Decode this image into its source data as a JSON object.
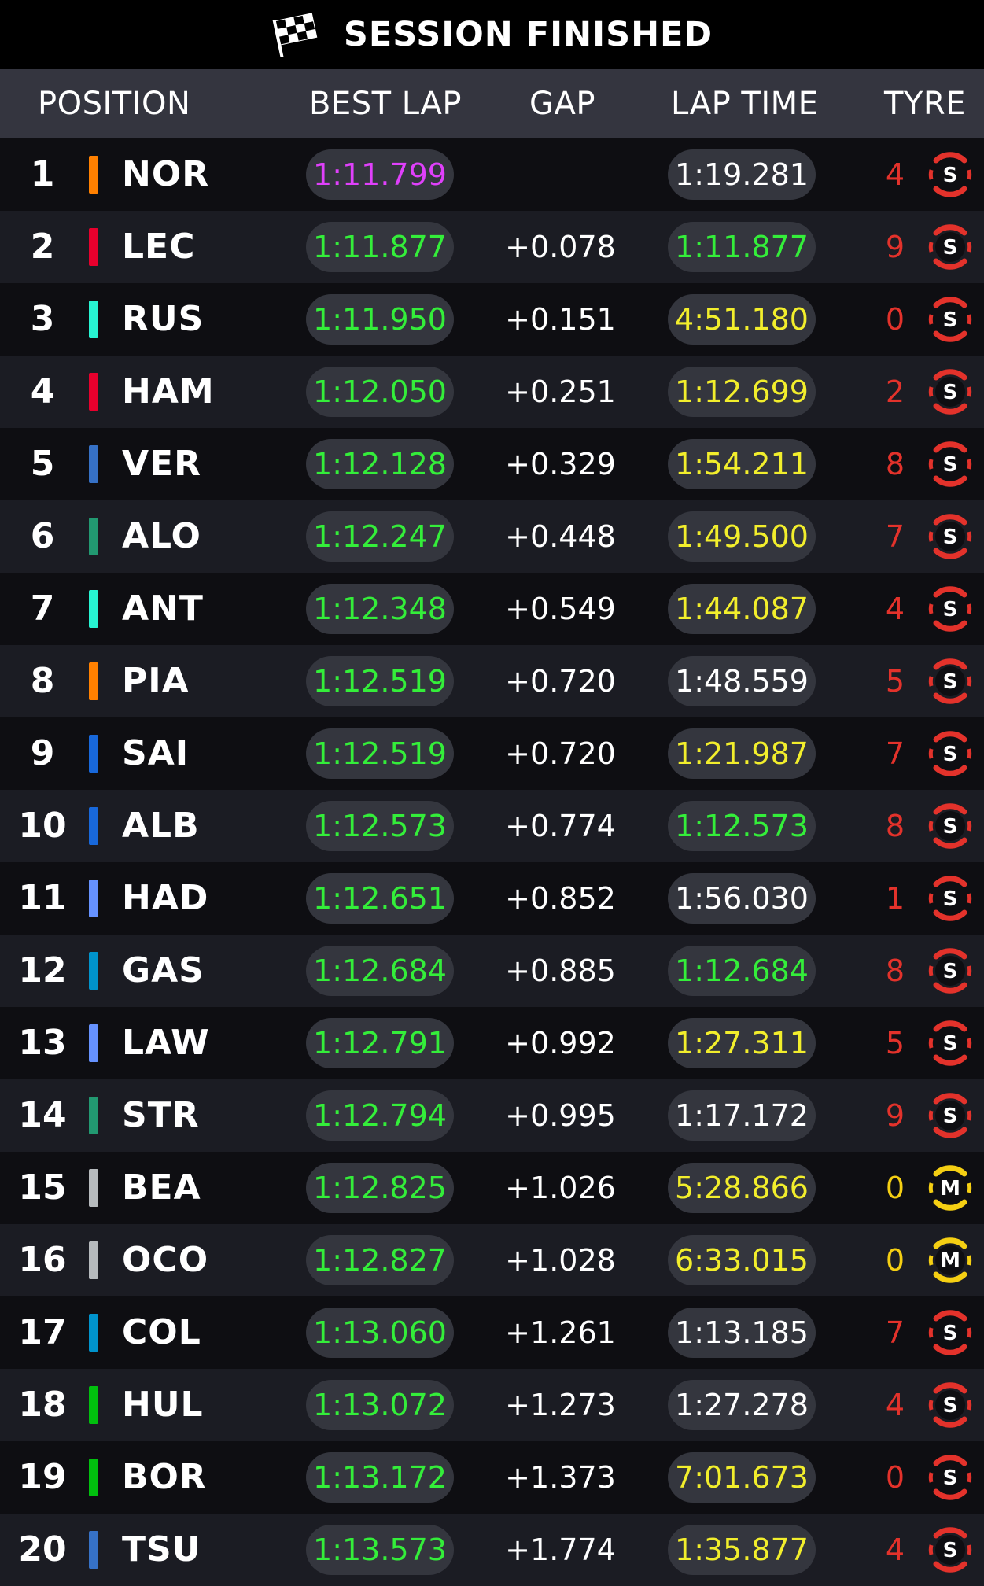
{
  "header": {
    "title": "SESSION FINISHED"
  },
  "columns": {
    "position": "POSITION",
    "best_lap": "BEST LAP",
    "gap": "GAP",
    "lap_time": "LAP TIME",
    "tyre": "TYRE"
  },
  "colors": {
    "purple": "#e040fb",
    "green": "#34ee3a",
    "yellow": "#f2ee2c",
    "white": "#ffffff",
    "soft": "#e3322b",
    "medium": "#f5cf13"
  },
  "rows": [
    {
      "pos": "1",
      "driver": "NOR",
      "team_color": "#ff8000",
      "best": "1:11.799",
      "best_color": "purple",
      "gap": "",
      "lap": "1:19.281",
      "lap_color": "white",
      "laps": "4",
      "tyre": "S"
    },
    {
      "pos": "2",
      "driver": "LEC",
      "team_color": "#e8002d",
      "best": "1:11.877",
      "best_color": "green",
      "gap": "+0.078",
      "lap": "1:11.877",
      "lap_color": "green",
      "laps": "9",
      "tyre": "S"
    },
    {
      "pos": "3",
      "driver": "RUS",
      "team_color": "#27f4d2",
      "best": "1:11.950",
      "best_color": "green",
      "gap": "+0.151",
      "lap": "4:51.180",
      "lap_color": "yellow",
      "laps": "0",
      "tyre": "S"
    },
    {
      "pos": "4",
      "driver": "HAM",
      "team_color": "#e8002d",
      "best": "1:12.050",
      "best_color": "green",
      "gap": "+0.251",
      "lap": "1:12.699",
      "lap_color": "yellow",
      "laps": "2",
      "tyre": "S"
    },
    {
      "pos": "5",
      "driver": "VER",
      "team_color": "#3671c6",
      "best": "1:12.128",
      "best_color": "green",
      "gap": "+0.329",
      "lap": "1:54.211",
      "lap_color": "yellow",
      "laps": "8",
      "tyre": "S"
    },
    {
      "pos": "6",
      "driver": "ALO",
      "team_color": "#229971",
      "best": "1:12.247",
      "best_color": "green",
      "gap": "+0.448",
      "lap": "1:49.500",
      "lap_color": "yellow",
      "laps": "7",
      "tyre": "S"
    },
    {
      "pos": "7",
      "driver": "ANT",
      "team_color": "#27f4d2",
      "best": "1:12.348",
      "best_color": "green",
      "gap": "+0.549",
      "lap": "1:44.087",
      "lap_color": "yellow",
      "laps": "4",
      "tyre": "S"
    },
    {
      "pos": "8",
      "driver": "PIA",
      "team_color": "#ff8000",
      "best": "1:12.519",
      "best_color": "green",
      "gap": "+0.720",
      "lap": "1:48.559",
      "lap_color": "white",
      "laps": "5",
      "tyre": "S"
    },
    {
      "pos": "9",
      "driver": "SAI",
      "team_color": "#1868db",
      "best": "1:12.519",
      "best_color": "green",
      "gap": "+0.720",
      "lap": "1:21.987",
      "lap_color": "yellow",
      "laps": "7",
      "tyre": "S"
    },
    {
      "pos": "10",
      "driver": "ALB",
      "team_color": "#1868db",
      "best": "1:12.573",
      "best_color": "green",
      "gap": "+0.774",
      "lap": "1:12.573",
      "lap_color": "green",
      "laps": "8",
      "tyre": "S"
    },
    {
      "pos": "11",
      "driver": "HAD",
      "team_color": "#6692ff",
      "best": "1:12.651",
      "best_color": "green",
      "gap": "+0.852",
      "lap": "1:56.030",
      "lap_color": "white",
      "laps": "1",
      "tyre": "S"
    },
    {
      "pos": "12",
      "driver": "GAS",
      "team_color": "#0093cc",
      "best": "1:12.684",
      "best_color": "green",
      "gap": "+0.885",
      "lap": "1:12.684",
      "lap_color": "green",
      "laps": "8",
      "tyre": "S"
    },
    {
      "pos": "13",
      "driver": "LAW",
      "team_color": "#6692ff",
      "best": "1:12.791",
      "best_color": "green",
      "gap": "+0.992",
      "lap": "1:27.311",
      "lap_color": "yellow",
      "laps": "5",
      "tyre": "S"
    },
    {
      "pos": "14",
      "driver": "STR",
      "team_color": "#229971",
      "best": "1:12.794",
      "best_color": "green",
      "gap": "+0.995",
      "lap": "1:17.172",
      "lap_color": "white",
      "laps": "9",
      "tyre": "S"
    },
    {
      "pos": "15",
      "driver": "BEA",
      "team_color": "#b6babd",
      "best": "1:12.825",
      "best_color": "green",
      "gap": "+1.026",
      "lap": "5:28.866",
      "lap_color": "yellow",
      "laps": "0",
      "tyre": "M"
    },
    {
      "pos": "16",
      "driver": "OCO",
      "team_color": "#b6babd",
      "best": "1:12.827",
      "best_color": "green",
      "gap": "+1.028",
      "lap": "6:33.015",
      "lap_color": "yellow",
      "laps": "0",
      "tyre": "M"
    },
    {
      "pos": "17",
      "driver": "COL",
      "team_color": "#0093cc",
      "best": "1:13.060",
      "best_color": "green",
      "gap": "+1.261",
      "lap": "1:13.185",
      "lap_color": "white",
      "laps": "7",
      "tyre": "S"
    },
    {
      "pos": "18",
      "driver": "HUL",
      "team_color": "#01c00e",
      "best": "1:13.072",
      "best_color": "green",
      "gap": "+1.273",
      "lap": "1:27.278",
      "lap_color": "white",
      "laps": "4",
      "tyre": "S"
    },
    {
      "pos": "19",
      "driver": "BOR",
      "team_color": "#01c00e",
      "best": "1:13.172",
      "best_color": "green",
      "gap": "+1.373",
      "lap": "7:01.673",
      "lap_color": "yellow",
      "laps": "0",
      "tyre": "S"
    },
    {
      "pos": "20",
      "driver": "TSU",
      "team_color": "#3671c6",
      "best": "1:13.573",
      "best_color": "green",
      "gap": "+1.774",
      "lap": "1:35.877",
      "lap_color": "yellow",
      "laps": "4",
      "tyre": "S"
    }
  ]
}
